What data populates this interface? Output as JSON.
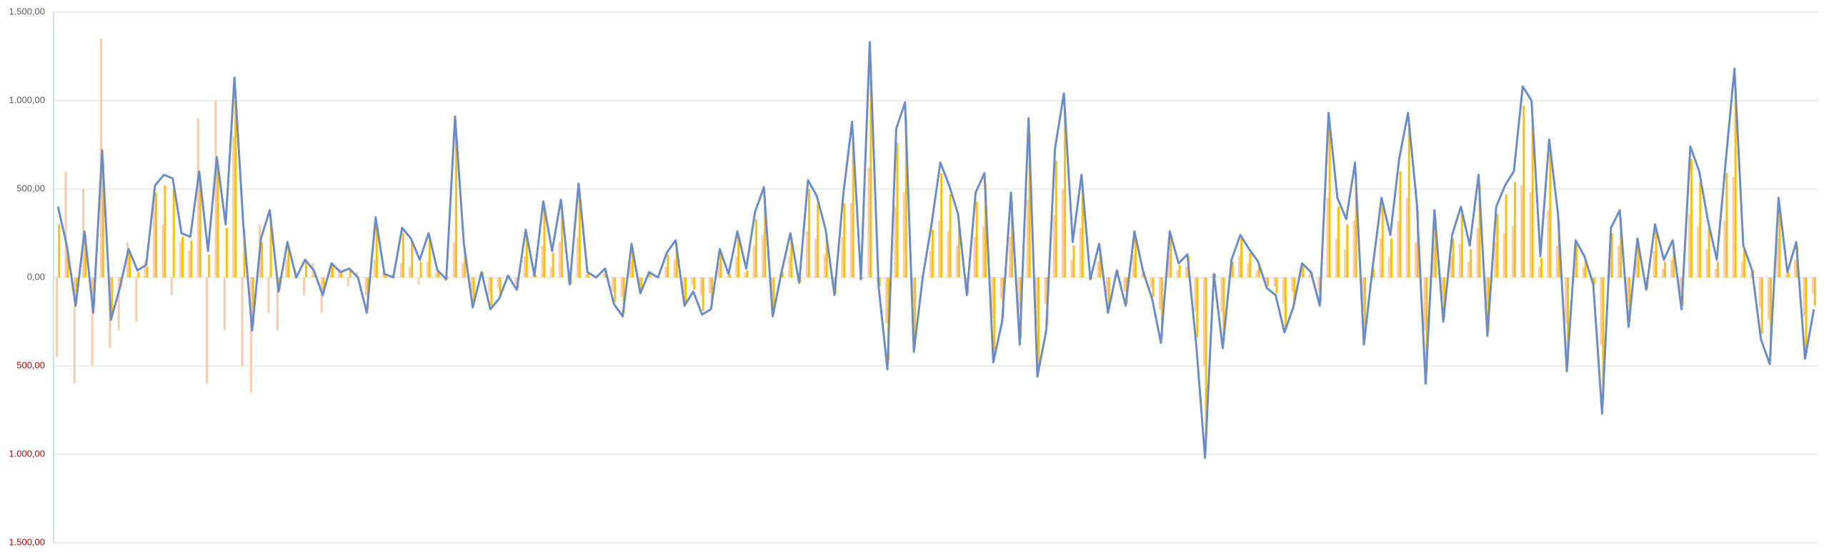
{
  "chart_data": {
    "type": "combo",
    "ylim": [
      -1500,
      1500
    ],
    "yticks": [
      {
        "value": -1500,
        "label": "1.500,00"
      },
      {
        "value": -1000,
        "label": "1.000,00"
      },
      {
        "value": -500,
        "label": "500,00"
      },
      {
        "value": 0,
        "label": "0,00"
      },
      {
        "value": 500,
        "label": "500,00"
      },
      {
        "value": 1000,
        "label": "1.000,00"
      },
      {
        "value": 1500,
        "label": "1.500,00"
      }
    ],
    "grid": true,
    "tick_label_color": "#595959",
    "negative_tick_label_color": "#c00000",
    "series": [
      {
        "mark": "bar",
        "color": "#f8cbad",
        "values": [
          -450,
          600,
          -600,
          500,
          -500,
          1350,
          -400,
          -300,
          200,
          -250,
          100,
          500,
          300,
          -100,
          200,
          150,
          900,
          -600,
          1000,
          -300,
          800,
          -500,
          -650,
          300,
          -200,
          -300,
          100,
          50,
          -100,
          80,
          -200,
          60,
          50,
          -50,
          30,
          -100,
          100,
          40,
          20,
          80,
          60,
          -40,
          90,
          30,
          -20,
          200,
          80,
          -90,
          20,
          -100,
          -60,
          10,
          -40,
          120,
          20,
          180,
          60,
          200,
          -30,
          230,
          20,
          10,
          30,
          -80,
          -110,
          90,
          -50,
          20,
          10,
          60,
          100,
          -90,
          -40,
          -100,
          -90,
          80,
          10,
          120,
          30,
          180,
          240,
          -100,
          20,
          120,
          -20,
          260,
          220,
          130,
          -50,
          230,
          420,
          -10,
          620,
          -30,
          -260,
          400,
          480,
          -200,
          10,
          150,
          320,
          260,
          180,
          -50,
          230,
          290,
          -230,
          -120,
          230,
          -180,
          440,
          -270,
          -150,
          350,
          500,
          100,
          280,
          -10,
          90,
          -100,
          20,
          -80,
          130,
          20,
          -60,
          -180,
          130,
          40,
          60,
          -190,
          -500,
          10,
          -200,
          50,
          120,
          80,
          40,
          -30,
          -50,
          -150,
          -80,
          40,
          20,
          -80,
          450,
          220,
          160,
          320,
          -190,
          30,
          220,
          120,
          320,
          450,
          200,
          -300,
          180,
          -120,
          120,
          190,
          90,
          280,
          -160,
          200,
          250,
          290,
          520,
          480,
          60,
          380,
          180,
          -260,
          100,
          60,
          -20,
          -380,
          140,
          180,
          -140,
          100,
          -30,
          150,
          50,
          100,
          -90,
          360,
          290,
          160,
          50,
          320,
          570,
          90,
          20,
          -170,
          -240,
          220,
          20,
          100,
          -220,
          -90
        ]
      },
      {
        "mark": "bar",
        "color": "#ffc000",
        "values": [
          300,
          150,
          -100,
          240,
          -150,
          650,
          -200,
          -50,
          140,
          30,
          60,
          480,
          520,
          500,
          230,
          210,
          560,
          130,
          620,
          280,
          1000,
          270,
          -270,
          200,
          340,
          -70,
          180,
          0,
          90,
          30,
          -90,
          70,
          30,
          40,
          0,
          -180,
          300,
          20,
          0,
          250,
          200,
          90,
          230,
          40,
          -10,
          820,
          170,
          -150,
          30,
          -160,
          -110,
          10,
          -60,
          240,
          10,
          390,
          140,
          400,
          -40,
          480,
          30,
          0,
          40,
          -140,
          -200,
          170,
          -80,
          30,
          0,
          130,
          190,
          -140,
          -70,
          -190,
          -160,
          150,
          20,
          230,
          40,
          330,
          460,
          -200,
          30,
          230,
          -30,
          500,
          420,
          240,
          -90,
          420,
          800,
          -10,
          1200,
          -50,
          -470,
          760,
          900,
          -380,
          0,
          270,
          590,
          470,
          320,
          -90,
          430,
          530,
          -430,
          -230,
          430,
          -340,
          810,
          -500,
          -270,
          660,
          940,
          180,
          520,
          -10,
          170,
          -180,
          40,
          -150,
          230,
          30,
          -110,
          -340,
          230,
          70,
          120,
          -340,
          -900,
          20,
          -360,
          90,
          220,
          140,
          80,
          -50,
          -90,
          -280,
          -150,
          70,
          30,
          -140,
          840,
          400,
          300,
          590,
          -340,
          50,
          400,
          220,
          600,
          840,
          380,
          -540,
          340,
          -230,
          220,
          360,
          160,
          520,
          -300,
          360,
          470,
          540,
          970,
          900,
          110,
          700,
          320,
          -480,
          190,
          110,
          -40,
          -690,
          250,
          340,
          -250,
          200,
          -60,
          270,
          90,
          190,
          -160,
          670,
          540,
          290,
          90,
          590,
          1060,
          160,
          40,
          -320,
          -440,
          400,
          30,
          180,
          -410,
          -160
        ]
      },
      {
        "mark": "line",
        "color": "#6a8cc8",
        "values": [
          400,
          180,
          -160,
          260,
          -200,
          720,
          -240,
          -60,
          160,
          40,
          70,
          520,
          580,
          560,
          250,
          230,
          600,
          150,
          680,
          300,
          1130,
          300,
          -300,
          220,
          380,
          -80,
          200,
          0,
          100,
          40,
          -100,
          80,
          30,
          50,
          0,
          -200,
          340,
          20,
          0,
          280,
          220,
          100,
          250,
          40,
          -10,
          910,
          190,
          -170,
          30,
          -180,
          -120,
          10,
          -70,
          270,
          10,
          430,
          150,
          440,
          -40,
          530,
          30,
          0,
          50,
          -150,
          -220,
          190,
          -90,
          30,
          0,
          140,
          210,
          -160,
          -80,
          -210,
          -180,
          160,
          20,
          260,
          50,
          370,
          510,
          -220,
          30,
          250,
          -30,
          550,
          460,
          270,
          -100,
          470,
          880,
          -10,
          1330,
          -50,
          -520,
          840,
          990,
          -420,
          0,
          300,
          650,
          520,
          360,
          -100,
          480,
          590,
          -480,
          -250,
          480,
          -380,
          900,
          -560,
          -300,
          730,
          1040,
          200,
          580,
          -10,
          190,
          -200,
          40,
          -160,
          260,
          30,
          -120,
          -370,
          260,
          80,
          130,
          -380,
          -1020,
          20,
          -400,
          100,
          240,
          160,
          90,
          -60,
          -100,
          -310,
          -170,
          80,
          30,
          -160,
          930,
          450,
          330,
          650,
          -380,
          60,
          450,
          240,
          670,
          930,
          420,
          -600,
          380,
          -250,
          240,
          400,
          180,
          580,
          -330,
          400,
          520,
          600,
          1080,
          1000,
          120,
          780,
          360,
          -530,
          210,
          120,
          -40,
          -770,
          280,
          380,
          -280,
          220,
          -70,
          300,
          100,
          210,
          -180,
          740,
          600,
          320,
          100,
          650,
          1180,
          180,
          40,
          -350,
          -490,
          450,
          30,
          200,
          -460,
          -180
        ]
      }
    ]
  }
}
